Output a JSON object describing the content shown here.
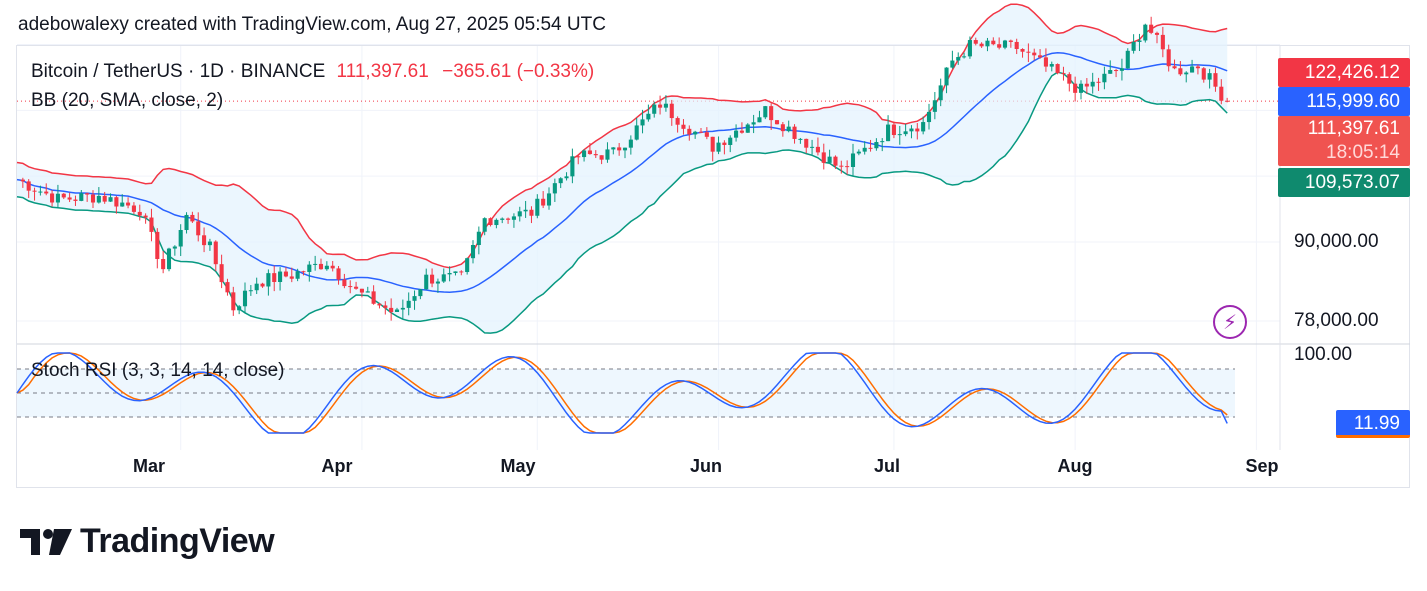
{
  "header": {
    "attribution": "adebowalexy created with TradingView.com, Aug 27, 2025 05:54 UTC"
  },
  "legend": {
    "symbol": "Bitcoin / TetherUS · 1D · BINANCE",
    "price": "111,397.61",
    "change": "−365.61 (−0.33%)",
    "bb": "BB (20, SMA, close, 2)",
    "stoch": "Stoch RSI (3, 3, 14, 14, close)"
  },
  "price_tags": {
    "upper": "122,426.12",
    "basis": "115,999.60",
    "last": "111,397.61",
    "countdown": "18:05:14",
    "lower": "109,573.07",
    "stoch": "11.99"
  },
  "y_ticks": {
    "t90": "90,000.00",
    "t78": "78,000.00",
    "t100": "100.00"
  },
  "x_ticks": [
    "Mar",
    "Apr",
    "May",
    "Jun",
    "Jul",
    "Aug",
    "Sep"
  ],
  "logo": {
    "name": "TradingView"
  },
  "colors": {
    "up": "#089981",
    "down": "#f23645",
    "basis": "#2962ff",
    "stochK": "#2962ff",
    "stochD": "#ff6d00",
    "bandFill": "#e3f2fd"
  },
  "chart_data": {
    "type": "candlestick",
    "title": "Bitcoin / TetherUS · 1D · BINANCE",
    "indicators": [
      "BB (20, SMA, close, 2)",
      "Stoch RSI (3, 3, 14, 14, close)"
    ],
    "x_range": [
      "2025-02-01",
      "2025-08-27"
    ],
    "y_range_approx": [
      74000,
      124000
    ],
    "y_ticks": [
      78000,
      90000
    ],
    "last_close": 111397.61,
    "bollinger_last": {
      "upper": 122426.12,
      "basis": 115999.6,
      "lower": 109573.07
    },
    "stoch_rsi_last": 11.99,
    "stoch_rsi_range": [
      0,
      100
    ],
    "close_series_approx": [
      [
        "2025-02-01",
        99500
      ],
      [
        "2025-02-08",
        96500
      ],
      [
        "2025-02-15",
        97000
      ],
      [
        "2025-02-22",
        95000
      ],
      [
        "2025-02-26",
        86000
      ],
      [
        "2025-03-02",
        94000
      ],
      [
        "2025-03-06",
        89000
      ],
      [
        "2025-03-10",
        80000
      ],
      [
        "2025-03-14",
        84000
      ],
      [
        "2025-03-20",
        85000
      ],
      [
        "2025-03-26",
        87000
      ],
      [
        "2025-03-31",
        82500
      ],
      [
        "2025-04-07",
        79000
      ],
      [
        "2025-04-12",
        84500
      ],
      [
        "2025-04-18",
        84500
      ],
      [
        "2025-04-22",
        93500
      ],
      [
        "2025-04-30",
        94500
      ],
      [
        "2025-05-08",
        103000
      ],
      [
        "2025-05-14",
        103500
      ],
      [
        "2025-05-22",
        111000
      ],
      [
        "2025-05-31",
        104500
      ],
      [
        "2025-06-09",
        110000
      ],
      [
        "2025-06-17",
        104500
      ],
      [
        "2025-06-22",
        101000
      ],
      [
        "2025-06-30",
        107000
      ],
      [
        "2025-07-06",
        108000
      ],
      [
        "2025-07-11",
        117500
      ],
      [
        "2025-07-14",
        119800
      ],
      [
        "2025-07-22",
        119500
      ],
      [
        "2025-08-02",
        113000
      ],
      [
        "2025-08-09",
        116500
      ],
      [
        "2025-08-13",
        123300
      ],
      [
        "2025-08-18",
        116000
      ],
      [
        "2025-08-22",
        116800
      ],
      [
        "2025-08-27",
        111397.61
      ]
    ]
  }
}
